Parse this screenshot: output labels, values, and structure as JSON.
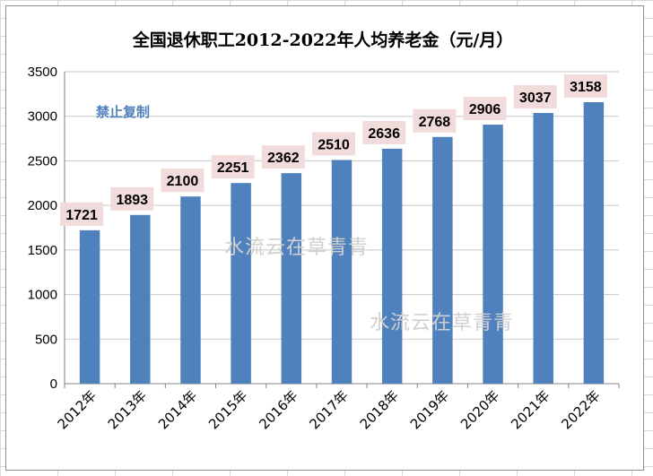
{
  "watermarks": [
    "禁止复制",
    "水流云在草青青"
  ],
  "chart_data": {
    "type": "bar",
    "title": "全国退休职工2012-2022年人均养老金（元/月）",
    "categories": [
      "2012年",
      "2013年",
      "2014年",
      "2015年",
      "2016年",
      "2017年",
      "2018年",
      "2019年",
      "2020年",
      "2021年",
      "2022年"
    ],
    "values": [
      1721,
      1893,
      2100,
      2251,
      2362,
      2510,
      2636,
      2768,
      2906,
      3037,
      3158
    ],
    "yticks": [
      0,
      500,
      1000,
      1500,
      2000,
      2500,
      3000,
      3500
    ],
    "ylim": [
      0,
      3500
    ],
    "xlabel": "",
    "ylabel": "",
    "grid": true,
    "legend": "none",
    "colors": {
      "bar": "#4f81bd",
      "label_bg": "#f2dcdb",
      "grid": "#c8c8c8",
      "axis": "#868686"
    }
  }
}
